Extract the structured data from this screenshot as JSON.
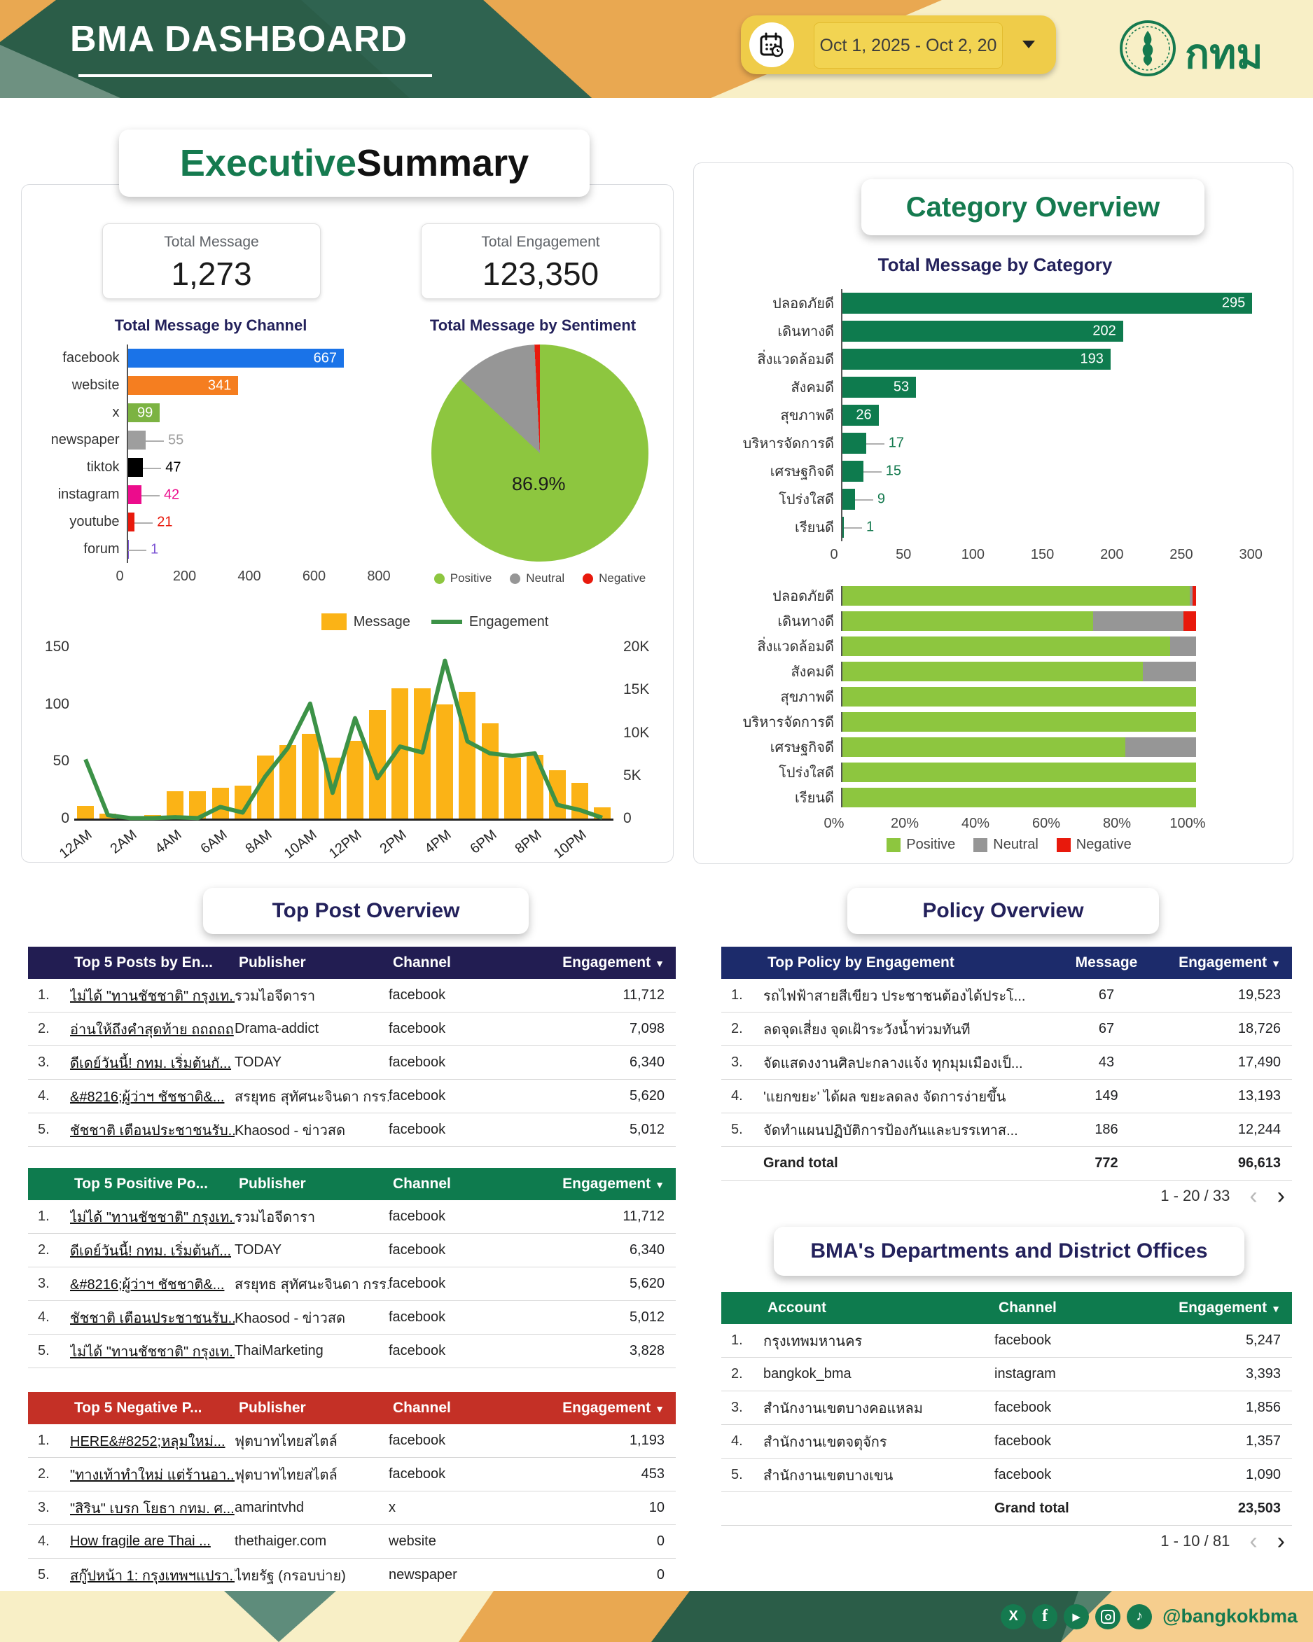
{
  "header": {
    "title": "BMA DASHBOARD",
    "date_range": "Oct 1, 2025 - Oct 2, 20",
    "logo_text": "กทม"
  },
  "footer": {
    "handle": "@bangkokbma",
    "social_icons": [
      "x-icon",
      "facebook-icon",
      "youtube-icon",
      "instagram-icon",
      "tiktok-icon"
    ]
  },
  "exec": {
    "title_green": "Executive",
    "title_black": " Summary",
    "kpis": [
      {
        "label": "Total Message",
        "value": "1,273"
      },
      {
        "label": "Total Engagement",
        "value": "123,350"
      }
    ],
    "channel_chart": {
      "type": "bar",
      "title": "Total Message by Channel",
      "categories": [
        "facebook",
        "website",
        "x",
        "newspaper",
        "tiktok",
        "instagram",
        "youtube",
        "forum"
      ],
      "values": [
        667,
        341,
        99,
        55,
        47,
        42,
        21,
        1
      ],
      "colors": [
        "#1A73E8",
        "#F57E20",
        "#7CB342",
        "#9E9E9E",
        "#000000",
        "#EC0C8C",
        "#E8190C",
        "#7B52D3"
      ],
      "xticks": [
        0,
        200,
        400,
        600,
        800
      ],
      "xmax": 800
    },
    "sentiment_chart": {
      "type": "pie",
      "title": "Total Message by Sentiment",
      "slices": [
        {
          "label": "Positive",
          "value": 86.9,
          "color": "#8DC63F"
        },
        {
          "label": "Neutral",
          "value": 12.3,
          "color": "#969696"
        },
        {
          "label": "Negative",
          "value": 0.8,
          "color": "#E8190C"
        }
      ],
      "center_label": "86.9%"
    },
    "timeseries": {
      "type": "bar+line",
      "legend": [
        "Message",
        "Engagement"
      ],
      "hours": [
        "12AM",
        "1AM",
        "2AM",
        "3AM",
        "4AM",
        "5AM",
        "6AM",
        "7AM",
        "8AM",
        "9AM",
        "10AM",
        "11AM",
        "12PM",
        "1PM",
        "2PM",
        "3PM",
        "4PM",
        "5PM",
        "6PM",
        "7PM",
        "8PM",
        "9PM",
        "10PM",
        "11PM"
      ],
      "x_labels": [
        "12AM",
        "2AM",
        "4AM",
        "6AM",
        "8AM",
        "10AM",
        "12PM",
        "2PM",
        "4PM",
        "6PM",
        "8PM",
        "10PM"
      ],
      "message": [
        11,
        4,
        0,
        3,
        24,
        24,
        27,
        29,
        55,
        64,
        74,
        53,
        68,
        95,
        114,
        114,
        100,
        111,
        83,
        53,
        56,
        42,
        31,
        10
      ],
      "engagement": [
        6900,
        400,
        50,
        50,
        150,
        50,
        1350,
        700,
        4900,
        8200,
        13400,
        3000,
        11700,
        4700,
        8400,
        7700,
        18400,
        9000,
        7600,
        7300,
        7600,
        1600,
        1000,
        100
      ],
      "left_ticks": [
        0,
        50,
        100,
        150
      ],
      "left_max": 150,
      "right_ticks": [
        "0",
        "5K",
        "10K",
        "15K",
        "20K"
      ],
      "right_max": 20000,
      "bar_color": "#FBB316",
      "line_color": "#3C9247"
    }
  },
  "category": {
    "title": "Category Overview",
    "bar_chart": {
      "type": "bar",
      "title": "Total Message by Category",
      "categories": [
        "ปลอดภัยดี",
        "เดินทางดี",
        "สิ่งแวดล้อมดี",
        "สังคมดี",
        "สุขภาพดี",
        "บริหารจัดการดี",
        "เศรษฐกิจดี",
        "โปร่งใสดี",
        "เรียนดี"
      ],
      "values": [
        295,
        202,
        193,
        53,
        26,
        17,
        15,
        9,
        1
      ],
      "bar_color": "#0E7B4E",
      "value_color": "#157A4F",
      "xticks": [
        0,
        50,
        100,
        150,
        200,
        250,
        300
      ],
      "xmax": 310
    },
    "stacked_chart": {
      "type": "stacked-bar-percent",
      "categories": [
        "ปลอดภัยดี",
        "เดินทางดี",
        "สิ่งแวดล้อมดี",
        "สังคมดี",
        "สุขภาพดี",
        "บริหารจัดการดี",
        "เศรษฐกิจดี",
        "โปร่งใสดี",
        "เรียนดี"
      ],
      "series": [
        {
          "name": "Positive",
          "color": "#8DC63F",
          "values": [
            98.3,
            70.8,
            92.7,
            84.9,
            100,
            100,
            80,
            100,
            100
          ]
        },
        {
          "name": "Neutral",
          "color": "#969696",
          "values": [
            0.7,
            25.7,
            7.3,
            15.1,
            0,
            0,
            20,
            0,
            0
          ]
        },
        {
          "name": "Negative",
          "color": "#E8190C",
          "values": [
            1.0,
            3.5,
            0,
            0,
            0,
            0,
            0,
            0,
            0
          ]
        }
      ],
      "xticks": [
        "0%",
        "20%",
        "40%",
        "60%",
        "80%",
        "100%"
      ]
    }
  },
  "top_posts": {
    "section_title": "Top Post Overview",
    "tables": [
      {
        "style": "navy",
        "heads": [
          "Top 5 Posts by En...",
          "Publisher",
          "Channel",
          "Engagement"
        ],
        "rows": [
          {
            "title": "ไม่ได้ \"ทานชัชชาติ\" กรุงเท...",
            "publisher": "รวมไอจีดารา",
            "channel": "facebook",
            "engagement": "11,712"
          },
          {
            "title": "อ่านให้ถึงคำสุดท้าย ถถถถถ",
            "publisher": "Drama-addict",
            "channel": "facebook",
            "engagement": "7,098"
          },
          {
            "title": "ดีเดย์วันนี้! กทม. เริ่มต้นกั...",
            "publisher": "TODAY",
            "channel": "facebook",
            "engagement": "6,340"
          },
          {
            "title": "&#8216;ผู้ว่าฯ ชัชชาติ&...",
            "publisher": "สรยุทธ สุทัศนะจินดา กรร...",
            "channel": "facebook",
            "engagement": "5,620"
          },
          {
            "title": "ชัชชาติ เตือนประชาชนรับ...",
            "publisher": "Khaosod - ข่าวสด",
            "channel": "facebook",
            "engagement": "5,012"
          }
        ]
      },
      {
        "style": "green",
        "heads": [
          "Top 5 Positive Po...",
          "Publisher",
          "Channel",
          "Engagement"
        ],
        "rows": [
          {
            "title": "ไม่ได้ \"ทานชัชชาติ\" กรุงเท...",
            "publisher": "รวมไอจีดารา",
            "channel": "facebook",
            "engagement": "11,712"
          },
          {
            "title": "ดีเดย์วันนี้! กทม. เริ่มต้นกั...",
            "publisher": "TODAY",
            "channel": "facebook",
            "engagement": "6,340"
          },
          {
            "title": "&#8216;ผู้ว่าฯ ชัชชาติ&...",
            "publisher": "สรยุทธ สุทัศนะจินดา กรร...",
            "channel": "facebook",
            "engagement": "5,620"
          },
          {
            "title": "ชัชชาติ เตือนประชาชนรับ...",
            "publisher": "Khaosod - ข่าวสด",
            "channel": "facebook",
            "engagement": "5,012"
          },
          {
            "title": "ไม่ได้ \"ทานชัชชาติ\" กรุงเท...",
            "publisher": "ThaiMarketing",
            "channel": "facebook",
            "engagement": "3,828"
          }
        ]
      },
      {
        "style": "red",
        "heads": [
          "Top 5 Negative P...",
          "Publisher",
          "Channel",
          "Engagement"
        ],
        "rows": [
          {
            "title": "HERE&#8252;หลุมใหม่...",
            "publisher": "ฟุตบาทไทยสไตล์",
            "channel": "facebook",
            "engagement": "1,193"
          },
          {
            "title": "\"ทางเท้าทำใหม่ แต่ร้านอา...",
            "publisher": "ฟุตบาทไทยสไตล์",
            "channel": "facebook",
            "engagement": "453"
          },
          {
            "title": "\"สิริน\" เบรก โยธา กทม. ศ...",
            "publisher": "amarintvhd",
            "channel": "x",
            "engagement": "10"
          },
          {
            "title": "How fragile are Thai ...",
            "publisher": "thethaiger.com",
            "channel": "website",
            "engagement": "0"
          },
          {
            "title": "สกู๊ปหน้า 1: กรุงเทพฯแปรา...",
            "publisher": "ไทยรัฐ (กรอบบ่าย)",
            "channel": "newspaper",
            "engagement": "0"
          }
        ]
      }
    ]
  },
  "policy": {
    "section_title": "Policy Overview",
    "heads": [
      "Top Policy by Engagement",
      "Message",
      "Engagement"
    ],
    "rows": [
      {
        "title": "รถไฟฟ้าสายสีเขียว ประชาชนต้องได้ประโ...",
        "message": "67",
        "engagement": "19,523"
      },
      {
        "title": "ลดจุดเสี่ยง จุดเฝ้าระวังน้ำท่วมทันที",
        "message": "67",
        "engagement": "18,726"
      },
      {
        "title": "จัดแสดงงานศิลปะกลางแจ้ง ทุกมุมเมืองเป็...",
        "message": "43",
        "engagement": "17,490"
      },
      {
        "title": "'แยกขยะ' ได้ผล ขยะลดลง จัดการง่ายขึ้น",
        "message": "149",
        "engagement": "13,193"
      },
      {
        "title": "จัดทำแผนปฏิบัติการป้องกันและบรรเทาส...",
        "message": "186",
        "engagement": "12,244"
      }
    ],
    "grand_total": {
      "label": "Grand total",
      "message": "772",
      "engagement": "96,613"
    },
    "pagination": "1 - 20 / 33"
  },
  "departments": {
    "section_title": "BMA's Departments and District Offices",
    "heads": [
      "Account",
      "Channel",
      "Engagement"
    ],
    "rows": [
      {
        "account": "กรุงเทพมหานคร",
        "channel": "facebook",
        "engagement": "5,247"
      },
      {
        "account": "bangkok_bma",
        "channel": "instagram",
        "engagement": "3,393"
      },
      {
        "account": "สำนักงานเขตบางคอแหลม",
        "channel": "facebook",
        "engagement": "1,856"
      },
      {
        "account": "สำนักงานเขตจตุจักร",
        "channel": "facebook",
        "engagement": "1,357"
      },
      {
        "account": "สำนักงานเขตบางเขน",
        "channel": "facebook",
        "engagement": "1,090"
      }
    ],
    "grand_total": {
      "label": "Grand total",
      "engagement": "23,503"
    },
    "pagination": "1 - 10 / 81"
  }
}
